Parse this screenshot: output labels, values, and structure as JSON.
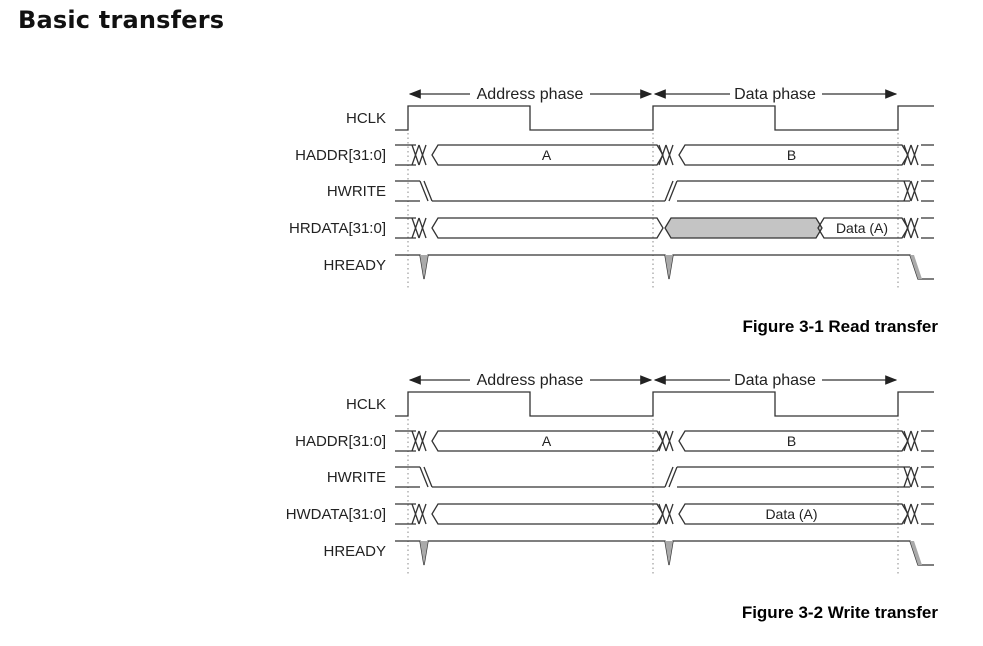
{
  "page": {
    "title": "Basic transfers"
  },
  "diagrams": [
    {
      "caption": "Figure 3-1 Read transfer",
      "phases": {
        "address": "Address phase",
        "data": "Data phase"
      },
      "signals": [
        {
          "key": "hclk",
          "label": "HCLK"
        },
        {
          "key": "haddr",
          "label": "HADDR[31:0]"
        },
        {
          "key": "hwrite",
          "label": "HWRITE"
        },
        {
          "key": "hdata",
          "label": "HRDATA[31:0]"
        },
        {
          "key": "hready",
          "label": "HREADY"
        }
      ],
      "values": {
        "address_a": "A",
        "address_b": "B",
        "data": "Data (A)"
      },
      "hwrite_level_in_data_phase": "low",
      "data_valid_late_in_data_phase": true
    },
    {
      "caption": "Figure 3-2 Write transfer",
      "phases": {
        "address": "Address phase",
        "data": "Data phase"
      },
      "signals": [
        {
          "key": "hclk",
          "label": "HCLK"
        },
        {
          "key": "haddr",
          "label": "HADDR[31:0]"
        },
        {
          "key": "hwrite",
          "label": "HWRITE"
        },
        {
          "key": "hdata",
          "label": "HWDATA[31:0]"
        },
        {
          "key": "hready",
          "label": "HREADY"
        }
      ],
      "values": {
        "address_a": "A",
        "address_b": "B",
        "data": "Data (A)"
      },
      "hwrite_level_in_data_phase": "high",
      "data_valid_late_in_data_phase": false
    }
  ]
}
